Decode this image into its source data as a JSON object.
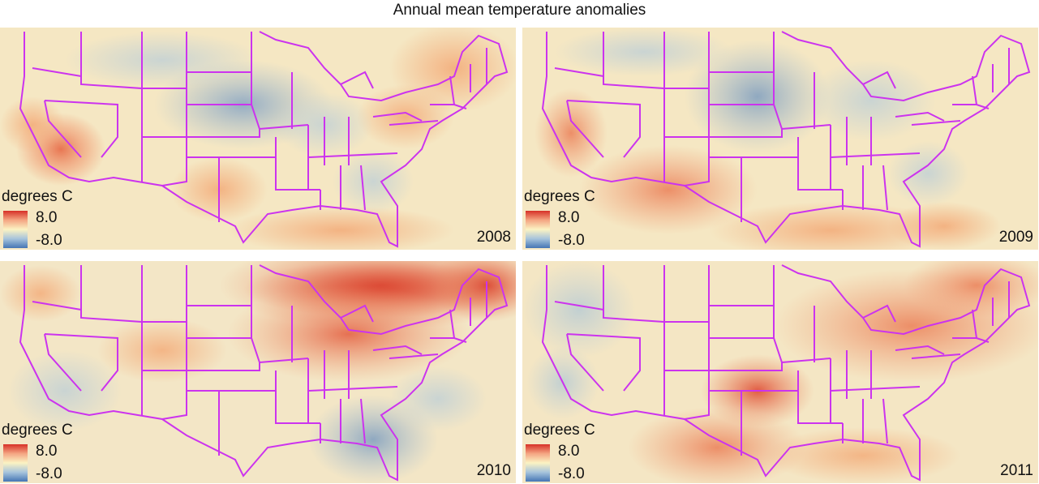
{
  "title": "Annual mean temperature anomalies",
  "legend": {
    "title": "degrees C",
    "high": "8.0",
    "low": "-8.0"
  },
  "colors": {
    "hot": "#d73027",
    "warm": "#f4a582",
    "neutral": "#fbf3c3",
    "cool": "#a7c4dc",
    "cold": "#4575b4",
    "borders": "#cc33ee"
  },
  "panels": [
    {
      "year": "2008",
      "hotspots": [
        {
          "region": "southern-california-nevada",
          "anomaly": 4
        },
        {
          "region": "new-england",
          "anomaly": 2.5
        },
        {
          "region": "virginia-mid-atlantic",
          "anomaly": 2
        },
        {
          "region": "texas-gulf",
          "anomaly": 1.5
        },
        {
          "region": "northern-plains-iowa",
          "anomaly": -2.5
        },
        {
          "region": "southeast-georgia",
          "anomaly": -1
        }
      ]
    },
    {
      "year": "2009",
      "hotspots": [
        {
          "region": "california",
          "anomaly": 2.5
        },
        {
          "region": "southwest-texas",
          "anomaly": 2.5
        },
        {
          "region": "gulf-coast",
          "anomaly": 2
        },
        {
          "region": "florida",
          "anomaly": 1.5
        },
        {
          "region": "dakotas-minnesota",
          "anomaly": -3
        },
        {
          "region": "great-lakes",
          "anomaly": -2
        },
        {
          "region": "carolinas",
          "anomaly": -1
        }
      ]
    },
    {
      "year": "2010",
      "hotspots": [
        {
          "region": "great-lakes-canada",
          "anomaly": 6
        },
        {
          "region": "new-england",
          "anomaly": 5
        },
        {
          "region": "pennsylvania-ohio",
          "anomaly": 3.5
        },
        {
          "region": "colorado-utah",
          "anomaly": 2
        },
        {
          "region": "pacific-northwest",
          "anomaly": 2
        },
        {
          "region": "georgia-florida",
          "anomaly": -3
        },
        {
          "region": "carolinas",
          "anomaly": -2
        }
      ]
    },
    {
      "year": "2011",
      "hotspots": [
        {
          "region": "oklahoma-north-texas",
          "anomaly": 5
        },
        {
          "region": "south-texas",
          "anomaly": 3.5
        },
        {
          "region": "northeast",
          "anomaly": 4
        },
        {
          "region": "ohio-valley",
          "anomaly": 3.5
        },
        {
          "region": "gulf-coast",
          "anomaly": 3
        },
        {
          "region": "northwest",
          "anomaly": -2
        },
        {
          "region": "california",
          "anomaly": -1
        }
      ]
    }
  ]
}
